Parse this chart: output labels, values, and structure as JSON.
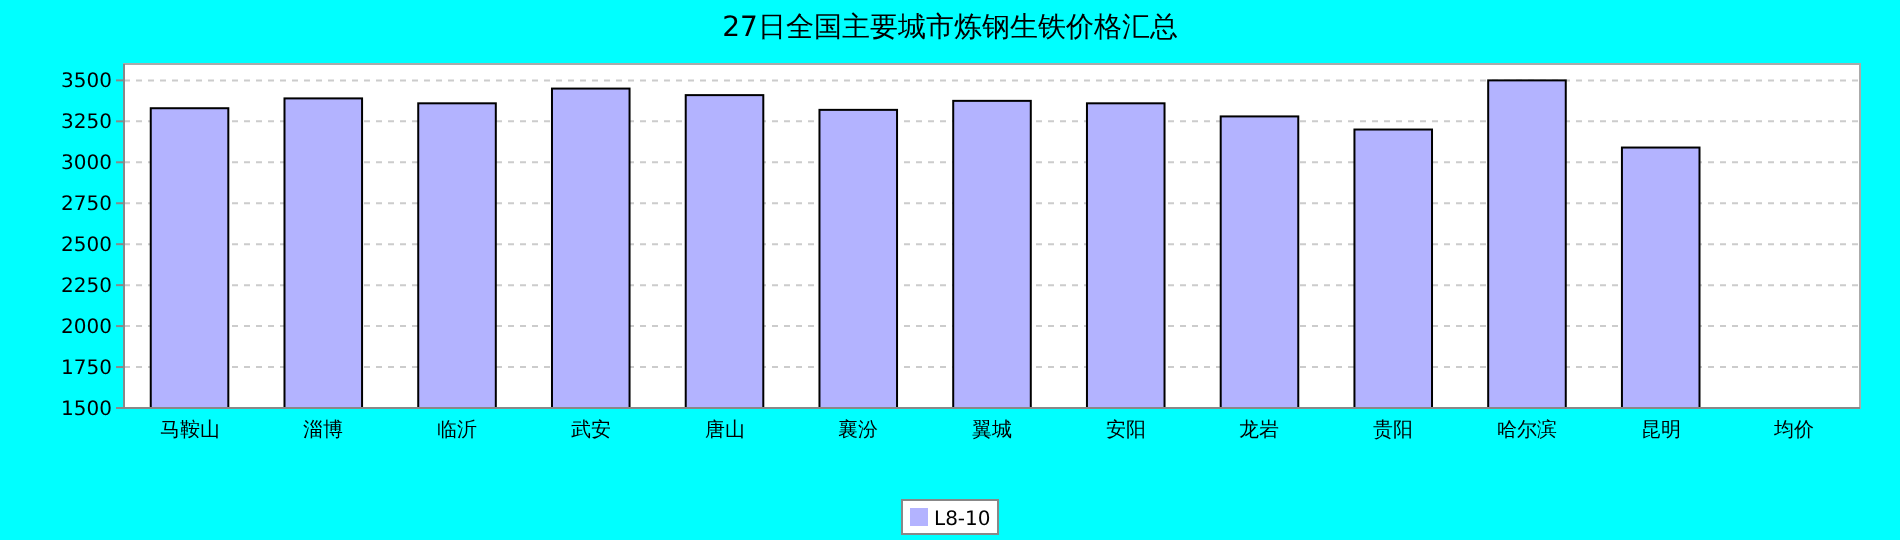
{
  "chart_data": {
    "type": "bar",
    "title": "27日全国主要城市炼钢生铁价格汇总",
    "categories": [
      "马鞍山",
      "淄博",
      "临沂",
      "武安",
      "唐山",
      "襄汾",
      "翼城",
      "安阳",
      "龙岩",
      "贵阳",
      "哈尔滨",
      "昆明",
      "均价"
    ],
    "series": [
      {
        "name": "L8-10",
        "color": "#b3b3ff",
        "values": [
          3330,
          3390,
          3360,
          3450,
          3410,
          3320,
          3375,
          3360,
          3280,
          3200,
          3500,
          3090,
          null
        ]
      }
    ],
    "ylim": [
      1500,
      3600
    ],
    "yticks": [
      1500,
      1750,
      2000,
      2250,
      2500,
      2750,
      3000,
      3250,
      3500
    ],
    "grid": "y",
    "legend": "bottom"
  }
}
